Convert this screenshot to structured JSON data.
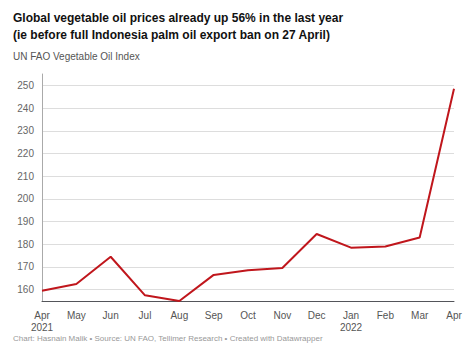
{
  "chart_data": {
    "type": "line",
    "title": "Global vegetable oil prices already up 56% in the last year\n(ie before full Indonesia palm oil export ban on 27 April)",
    "subtitle": "UN FAO Vegetable Oil Index",
    "footer": "Chart: Hasnain Malik • Source: UN FAO, Tellimer Research • Created with Datawrapper",
    "categories": [
      "Apr\n2021",
      "May",
      "Jun",
      "Jul",
      "Aug",
      "Sep",
      "Oct",
      "Nov",
      "Dec",
      "Jan\n2022",
      "Feb",
      "Mar",
      "Apr"
    ],
    "values": [
      159.5,
      162.5,
      174.5,
      157.5,
      155.0,
      166.5,
      168.5,
      169.5,
      184.5,
      178.5,
      179.0,
      183.0,
      248.5
    ],
    "color": "#c0161c",
    "ylim": [
      155,
      255
    ],
    "yticks": [
      160,
      170,
      180,
      190,
      200,
      210,
      220,
      230,
      240,
      250
    ],
    "grid": true
  }
}
